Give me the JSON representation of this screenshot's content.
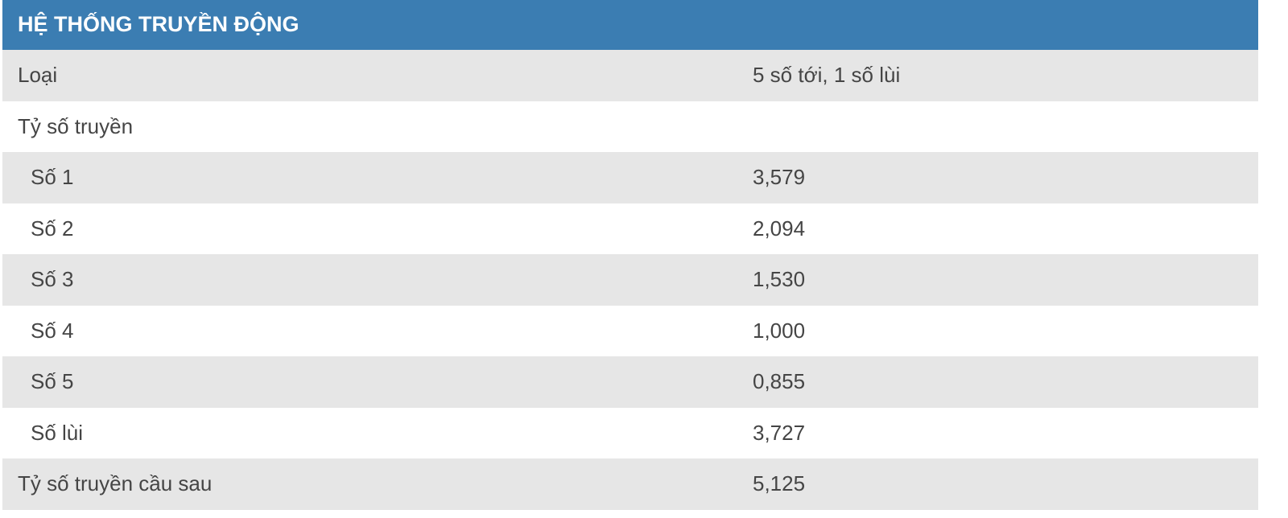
{
  "header": {
    "title": "HỆ THỐNG TRUYỀN ĐỘNG"
  },
  "table": {
    "rows": [
      [
        "Loại",
        "5 số tới, 1 số lùi"
      ],
      [
        "Tỷ số truyền"
      ],
      [
        "Số 1",
        "3,579"
      ],
      [
        "Số 2",
        "2,094"
      ],
      [
        "Số 3",
        "1,530"
      ],
      [
        "Số 4",
        "1,000"
      ],
      [
        "Số 5",
        "0,855"
      ],
      [
        "Số lùi",
        "3,727"
      ],
      [
        "Tỷ số truyền cầu sau",
        "5,125"
      ]
    ]
  }
}
